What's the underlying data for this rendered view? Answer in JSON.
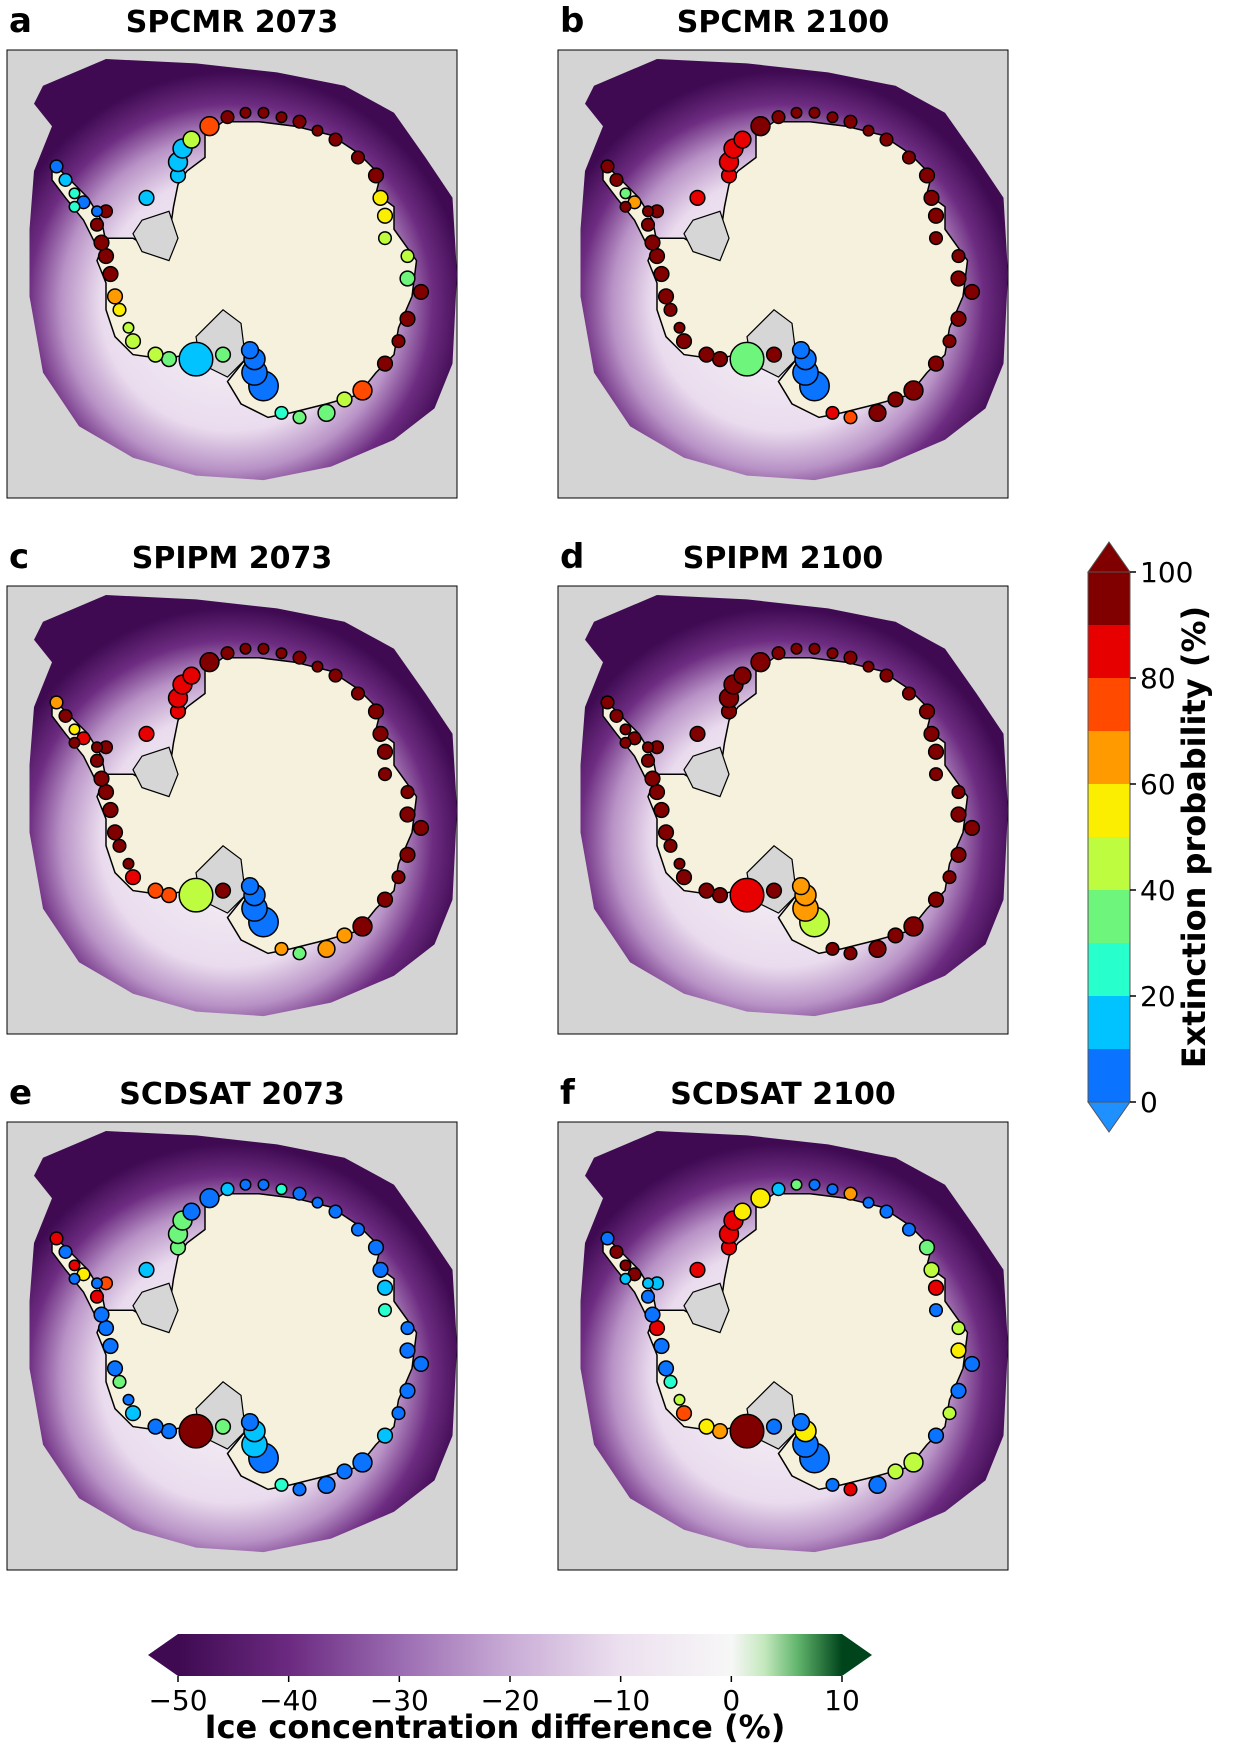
{
  "panels": [
    {
      "letter": "a",
      "title": "SPCMR 2073"
    },
    {
      "letter": "b",
      "title": "SPCMR 2100"
    },
    {
      "letter": "c",
      "title": "SPIPM 2073"
    },
    {
      "letter": "d",
      "title": "SPIPM 2100"
    },
    {
      "letter": "e",
      "title": "SCDSAT 2073"
    },
    {
      "letter": "f",
      "title": "SCDSAT 2100"
    }
  ],
  "chart_data": [
    {
      "type": "colorbar",
      "orientation": "vertical",
      "label": "Extinction probability (%)",
      "range": [
        0,
        100
      ],
      "ticks": [
        "0",
        "20",
        "40",
        "60",
        "80",
        "100"
      ],
      "extend": "both",
      "bins": [
        {
          "from": 0,
          "to": 10,
          "color": "#0a73ff"
        },
        {
          "from": 10,
          "to": 20,
          "color": "#00c3ff"
        },
        {
          "from": 20,
          "to": 30,
          "color": "#27ffcc"
        },
        {
          "from": 30,
          "to": 40,
          "color": "#6df57c"
        },
        {
          "from": 40,
          "to": 50,
          "color": "#bdfc3e"
        },
        {
          "from": 50,
          "to": 60,
          "color": "#fcee00"
        },
        {
          "from": 60,
          "to": 70,
          "color": "#ff9a00"
        },
        {
          "from": 70,
          "to": 80,
          "color": "#ff4a00"
        },
        {
          "from": 80,
          "to": 90,
          "color": "#e60000"
        },
        {
          "from": 90,
          "to": 100,
          "color": "#800000"
        }
      ]
    },
    {
      "type": "colorbar",
      "orientation": "horizontal",
      "label": "Ice concentration difference (%)",
      "range": [
        -50,
        10
      ],
      "ticks": [
        "−50",
        "−40",
        "−30",
        "−20",
        "−10",
        "0",
        "10"
      ],
      "tick_values": [
        -50,
        -40,
        -30,
        -20,
        -10,
        0,
        10
      ],
      "extend": "both",
      "stops": [
        {
          "value": -50,
          "color": "#3f0a52"
        },
        {
          "value": -40,
          "color": "#6b2a80"
        },
        {
          "value": -30,
          "color": "#9a6bb1"
        },
        {
          "value": -20,
          "color": "#c9acd6"
        },
        {
          "value": -10,
          "color": "#ece0ef"
        },
        {
          "value": 0,
          "color": "#f7f7f7"
        },
        {
          "value": 3,
          "color": "#c4e8bd"
        },
        {
          "value": 6,
          "color": "#61b56c"
        },
        {
          "value": 10,
          "color": "#00441b"
        }
      ]
    }
  ],
  "colors": {
    "land": "#f5f1dc",
    "background": "#d4d4d4",
    "ice_shelf": "#d6d6d6",
    "coast": "#000000"
  }
}
